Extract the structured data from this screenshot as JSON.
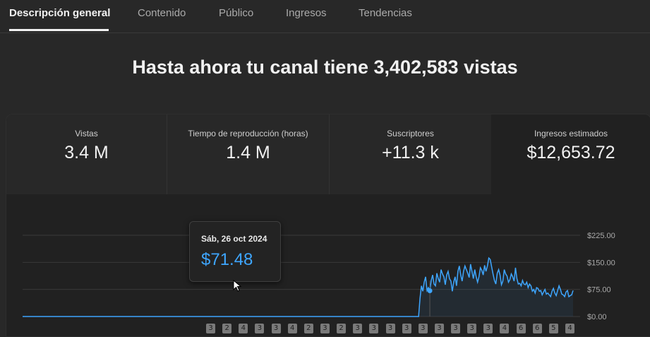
{
  "tabs": [
    {
      "label": "Descripción general",
      "active": true
    },
    {
      "label": "Contenido",
      "active": false
    },
    {
      "label": "Público",
      "active": false
    },
    {
      "label": "Ingresos",
      "active": false
    },
    {
      "label": "Tendencias",
      "active": false
    }
  ],
  "headline": "Hasta ahora tu canal tiene 3,402,583 vistas",
  "metrics": [
    {
      "label": "Vistas",
      "value": "3.4 M"
    },
    {
      "label": "Tiempo de reproducción (horas)",
      "value": "1.4 M"
    },
    {
      "label": "Suscriptores",
      "value": "+11.3 k"
    },
    {
      "label": "Ingresos estimados",
      "value": "$12,653.72",
      "selected": true
    }
  ],
  "tooltip": {
    "date": "Sáb, 26 oct 2024",
    "value": "$71.48"
  },
  "colors": {
    "accent": "#3ea6ff",
    "background": "#282828",
    "card": "#212121"
  },
  "chart_data": {
    "type": "area",
    "ylim": [
      0,
      225
    ],
    "yticks": [
      "$225.00",
      "$150.00",
      "$75.00",
      "$0.00"
    ],
    "ytick_values": [
      225,
      150,
      75,
      0
    ],
    "grid": true,
    "values": [
      0,
      0,
      0,
      0,
      0,
      0,
      0,
      0,
      0,
      0,
      0,
      0,
      0,
      0,
      0,
      0,
      0,
      0,
      0,
      0,
      0,
      0,
      0,
      0,
      0,
      0,
      0,
      0,
      0,
      0,
      0,
      0,
      0,
      0,
      0,
      0,
      0,
      0,
      0,
      0,
      0,
      0,
      0,
      0,
      0,
      0,
      0,
      0,
      0,
      0,
      0,
      0,
      0,
      0,
      0,
      0,
      0,
      0,
      0,
      0,
      0,
      0,
      0,
      0,
      0,
      0,
      0,
      0,
      0,
      0,
      0,
      0,
      0,
      0,
      0,
      0,
      0,
      0,
      0,
      0,
      0,
      0,
      0,
      0,
      0,
      0,
      0,
      0,
      0,
      0,
      0,
      0,
      0,
      0,
      0,
      0,
      0,
      0,
      0,
      0,
      0,
      0,
      0,
      0,
      0,
      0,
      0,
      0,
      0,
      0,
      0,
      0,
      0,
      0,
      0,
      0,
      0,
      0,
      0,
      0,
      0,
      0,
      0,
      0,
      0,
      0,
      0,
      0,
      0,
      0,
      0,
      0,
      0,
      0,
      0,
      0,
      0,
      0,
      0,
      0,
      0,
      0,
      0,
      0,
      0,
      0,
      0,
      0,
      0,
      0,
      0,
      0,
      0,
      0,
      0,
      0,
      0,
      0,
      0,
      0,
      0,
      0,
      0,
      0,
      0,
      0,
      0,
      0,
      0,
      0,
      0,
      0,
      0,
      0,
      0,
      0,
      0,
      0,
      0,
      0,
      0,
      0,
      0,
      0,
      0,
      0,
      0,
      0,
      0,
      0,
      0,
      0,
      0,
      0,
      0,
      0,
      0,
      0,
      0,
      0,
      0,
      0,
      0,
      0,
      0,
      0,
      0,
      0,
      0,
      0,
      0,
      0,
      0,
      0,
      0,
      0,
      0,
      0,
      0,
      0,
      0,
      0,
      0,
      0,
      0,
      0,
      0,
      0,
      0,
      0,
      0,
      0,
      0,
      0,
      0,
      0,
      0,
      0,
      0,
      0,
      0,
      0,
      0,
      0,
      0,
      0,
      0,
      0,
      0,
      0,
      0,
      0,
      0,
      0,
      0,
      0,
      0,
      0,
      0,
      0,
      0,
      0,
      0,
      0,
      0,
      0,
      0,
      0,
      0,
      0,
      0,
      0,
      0,
      0,
      0,
      0,
      0,
      0,
      0,
      0,
      0,
      0,
      0,
      50,
      85,
      70,
      95,
      110,
      72,
      80,
      71.48,
      100,
      115,
      90,
      85,
      120,
      105,
      95,
      130,
      118,
      110,
      88,
      115,
      125,
      105,
      98,
      70,
      95,
      110,
      85,
      125,
      140,
      115,
      98,
      125,
      140,
      130,
      120,
      108,
      145,
      125,
      105,
      130,
      110,
      95,
      110,
      135,
      128,
      115,
      142,
      125,
      140,
      162,
      158,
      138,
      118,
      100,
      90,
      120,
      130,
      115,
      88,
      98,
      130,
      118,
      112,
      95,
      102,
      118,
      110,
      98,
      135,
      105,
      90,
      92,
      85,
      100,
      90,
      88,
      95,
      80,
      90,
      85,
      70,
      75,
      65,
      80,
      78,
      70,
      72,
      60,
      68,
      75,
      62,
      65,
      60,
      55,
      70,
      78,
      65,
      58,
      72,
      85,
      75,
      62,
      60,
      55,
      68,
      72,
      55,
      58,
      60,
      72
    ]
  },
  "badges": [
    "3",
    "2",
    "4",
    "3",
    "3",
    "4",
    "2",
    "3",
    "2",
    "3",
    "3",
    "3",
    "3",
    "3",
    "3",
    "3",
    "3",
    "3",
    "4",
    "6",
    "6",
    "5",
    "4"
  ]
}
